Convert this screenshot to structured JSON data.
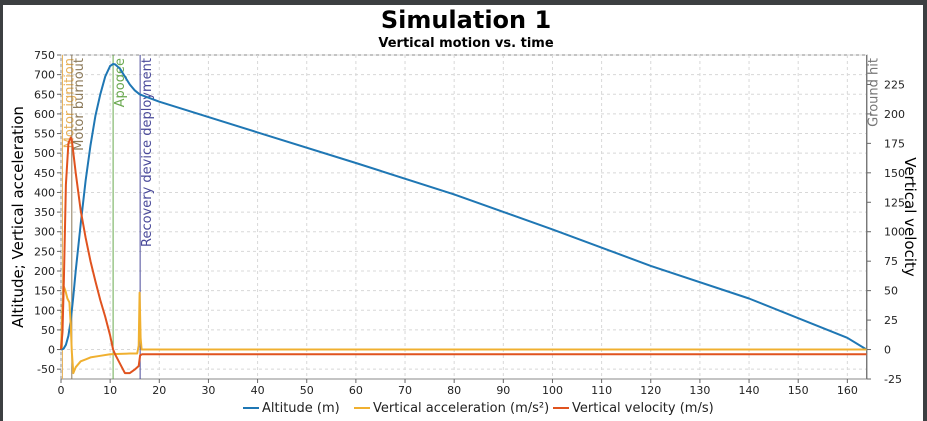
{
  "chart_data": {
    "type": "line",
    "title": "Simulation 1",
    "subtitle": "Vertical motion vs. time",
    "ylabel_left": "Altitude; Vertical acceleration",
    "ylabel_right": "Vertical velocity",
    "xlim": [
      0,
      164
    ],
    "ylim_left": [
      -75,
      750
    ],
    "ylim_right": [
      -25,
      250
    ],
    "x_ticks": [
      0,
      10,
      20,
      30,
      40,
      50,
      60,
      70,
      80,
      90,
      100,
      110,
      120,
      130,
      140,
      150,
      160
    ],
    "y_ticks_left": [
      -50,
      0,
      50,
      100,
      150,
      200,
      250,
      300,
      350,
      400,
      450,
      500,
      550,
      600,
      650,
      700,
      750
    ],
    "y_ticks_right": [
      -25,
      0,
      25,
      50,
      75,
      100,
      125,
      150,
      175,
      200,
      225
    ],
    "grid": true,
    "legend_position": "bottom",
    "events": [
      {
        "label": "Motor ignition",
        "x": 0.3,
        "color": "#e8b25a"
      },
      {
        "label": "Motor burnout",
        "x": 2.2,
        "color": "#8c7a5a"
      },
      {
        "label": "Apogee",
        "x": 10.6,
        "color": "#6aa84f"
      },
      {
        "label": "Recovery device deployment",
        "x": 16.1,
        "color": "#4a4a9a"
      },
      {
        "label": "Ground hit",
        "x": 163.9,
        "color": "#777777"
      }
    ],
    "series": [
      {
        "name": "Altitude (m)",
        "axis": "left",
        "color": "#1f77b4",
        "x": [
          0,
          0.5,
          1,
          1.5,
          2,
          2.5,
          3,
          4,
          5,
          6,
          7,
          8,
          9,
          10,
          10.6,
          11,
          12,
          13,
          14,
          15,
          16,
          17,
          20,
          40,
          60,
          80,
          100,
          120,
          140,
          160,
          163.9
        ],
        "y": [
          0,
          2,
          12,
          35,
          75,
          135,
          200,
          320,
          430,
          520,
          595,
          650,
          695,
          722,
          727,
          726,
          715,
          695,
          675,
          660,
          650,
          645,
          631,
          553,
          475,
          395,
          306,
          213,
          130,
          30,
          0
        ]
      },
      {
        "name": "Vertical acceleration (m/s²)",
        "axis": "left",
        "color": "#f0b030",
        "x": [
          0,
          0.3,
          0.6,
          0.9,
          1.3,
          1.7,
          2.0,
          2.2,
          2.5,
          3,
          4,
          5,
          6,
          8,
          10,
          12,
          14,
          15.5,
          15.8,
          16.0,
          16.2,
          16.4,
          20,
          60,
          100,
          140,
          163.9
        ],
        "y": [
          0,
          110,
          160,
          150,
          130,
          120,
          60,
          -5,
          -60,
          -45,
          -30,
          -25,
          -20,
          -16,
          -12,
          -11,
          -10,
          -10,
          10,
          145,
          30,
          0,
          0,
          0,
          0,
          0,
          0
        ]
      },
      {
        "name": "Vertical velocity (m/s)",
        "axis": "right",
        "color": "#e0531f",
        "x": [
          0,
          0.3,
          0.6,
          1.0,
          1.5,
          2.0,
          2.2,
          3,
          4,
          5,
          6,
          7,
          8,
          9,
          10,
          10.6,
          11,
          12,
          13,
          14,
          15,
          15.8,
          16.1,
          16.5,
          20,
          60,
          100,
          140,
          163.9
        ],
        "y": [
          0,
          15,
          60,
          140,
          175,
          180,
          178,
          150,
          118,
          95,
          75,
          58,
          42,
          28,
          12,
          0,
          -4,
          -12,
          -20,
          -20,
          -17,
          -14,
          -5,
          -4,
          -4,
          -4,
          -4,
          -4,
          -4
        ]
      }
    ]
  }
}
